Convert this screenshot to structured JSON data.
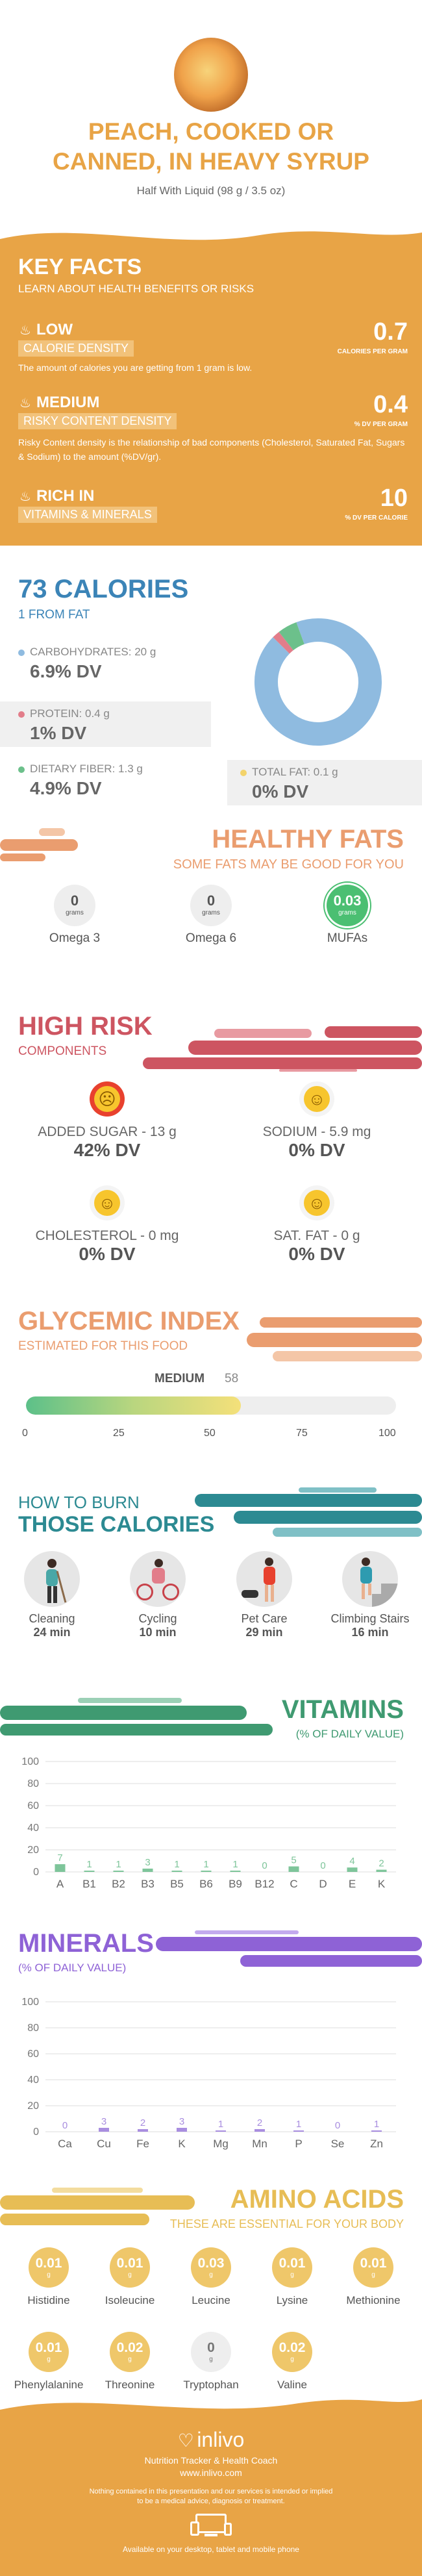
{
  "header": {
    "title_line1": "PEACH, COOKED OR",
    "title_line2": "CANNED, IN HEAVY SYRUP",
    "serving": "Half With Liquid (98 g / 3.5 oz)"
  },
  "key_facts": {
    "title": "KEY FACTS",
    "subtitle": "LEARN ABOUT HEALTH BENEFITS OR RISKS",
    "items": [
      {
        "level": "LOW",
        "label": "CALORIE DENSITY",
        "value": "0.7",
        "unit": "CALORIES PER GRAM",
        "desc": "The amount of calories you are getting from 1 gram is low."
      },
      {
        "level": "MEDIUM",
        "label": "RISKY CONTENT DENSITY",
        "value": "0.4",
        "unit": "% DV PER GRAM",
        "desc": "Risky Content density is the relationship of bad components (Cholesterol, Saturated Fat, Sugars & Sodium) to the amount (%DV/gr)."
      },
      {
        "level": "RICH IN",
        "label": "VITAMINS & MINERALS",
        "value": "10",
        "unit": "% DV PER CALORIE",
        "desc": ""
      }
    ]
  },
  "calories": {
    "title": "73 CALORIES",
    "from_fat": "1 FROM FAT",
    "macros": [
      {
        "label": "CARBOHYDRATES: 20 g",
        "dv": "6.9% DV",
        "color": "#8fbbe0"
      },
      {
        "label": "PROTEIN: 0.4 g",
        "dv": "1% DV",
        "color": "#e27d8a"
      },
      {
        "label": "DIETARY FIBER: 1.3 g",
        "dv": "4.9% DV",
        "color": "#6cc08b"
      },
      {
        "label": "TOTAL FAT: 0.1 g",
        "dv": "0% DV",
        "color": "#f3d36b"
      }
    ],
    "donut": [
      {
        "name": "carbohydrates",
        "value": 93,
        "color": "#8fbbe0"
      },
      {
        "name": "protein",
        "value": 2,
        "color": "#e27d8a"
      },
      {
        "name": "fiber",
        "value": 5,
        "color": "#6cc08b"
      }
    ]
  },
  "healthy_fats": {
    "title": "HEALTHY FATS",
    "subtitle": "SOME FATS MAY BE GOOD FOR YOU",
    "items": [
      {
        "value": "0",
        "unit": "grams",
        "label": "Omega 3"
      },
      {
        "value": "0",
        "unit": "grams",
        "label": "Omega 6"
      },
      {
        "value": "0.03",
        "unit": "grams",
        "label": "MUFAs"
      }
    ]
  },
  "high_risk": {
    "title": "HIGH RISK",
    "subtitle": "COMPONENTS",
    "items": [
      {
        "label": "ADDED SUGAR - 13 g",
        "dv": "42% DV",
        "face": "sad"
      },
      {
        "label": "SODIUM - 5.9 mg",
        "dv": "0% DV",
        "face": "happy"
      },
      {
        "label": "CHOLESTEROL - 0 mg",
        "dv": "0% DV",
        "face": "happy"
      },
      {
        "label": "SAT. FAT - 0 g",
        "dv": "0% DV",
        "face": "happy"
      }
    ]
  },
  "glycemic": {
    "title": "GLYCEMIC INDEX",
    "subtitle": "ESTIMATED FOR THIS FOOD",
    "level": "MEDIUM",
    "value": 58,
    "value_text": "58",
    "ticks": [
      "0",
      "25",
      "50",
      "75",
      "100"
    ]
  },
  "burn": {
    "title_line1": "HOW TO BURN",
    "title_line2": "THOSE CALORIES",
    "items": [
      {
        "label": "Cleaning",
        "time": "24 min"
      },
      {
        "label": "Cycling",
        "time": "10 min"
      },
      {
        "label": "Pet Care",
        "time": "29 min"
      },
      {
        "label": "Climbing Stairs",
        "time": "16 min"
      }
    ]
  },
  "vitamins": {
    "title": "VITAMINS",
    "subtitle": "(% OF DAILY VALUE)",
    "y_ticks": [
      "100",
      "80",
      "60",
      "40",
      "20",
      "0"
    ],
    "chart_data": {
      "type": "bar",
      "categories": [
        "A",
        "B1",
        "B2",
        "B3",
        "B5",
        "B6",
        "B9",
        "B12",
        "C",
        "D",
        "E",
        "K"
      ],
      "values": [
        7,
        1,
        1,
        3,
        1,
        1,
        1,
        0,
        5,
        0,
        4,
        2
      ],
      "ylim": [
        0,
        100
      ]
    }
  },
  "minerals": {
    "title": "MINERALS",
    "subtitle": "(% OF DAILY VALUE)",
    "y_ticks": [
      "100",
      "80",
      "60",
      "40",
      "20",
      "0"
    ],
    "chart_data": {
      "type": "bar",
      "categories": [
        "Ca",
        "Cu",
        "Fe",
        "K",
        "Mg",
        "Mn",
        "P",
        "Se",
        "Zn"
      ],
      "values": [
        0,
        3,
        2,
        3,
        1,
        2,
        1,
        0,
        1
      ],
      "ylim": [
        0,
        100
      ]
    }
  },
  "amino": {
    "title": "AMINO ACIDS",
    "subtitle": "THESE ARE ESSENTIAL FOR YOUR BODY",
    "unit": "g",
    "items": [
      {
        "value": "0.01",
        "label": "Histidine",
        "empty": false
      },
      {
        "value": "0.01",
        "label": "Isoleucine",
        "empty": false
      },
      {
        "value": "0.03",
        "label": "Leucine",
        "empty": false
      },
      {
        "value": "0.01",
        "label": "Lysine",
        "empty": false
      },
      {
        "value": "0.01",
        "label": "Methionine",
        "empty": false
      },
      {
        "value": "0.01",
        "label": "Phenylalanine",
        "empty": false
      },
      {
        "value": "0.02",
        "label": "Threonine",
        "empty": false
      },
      {
        "value": "0",
        "label": "Tryptophan",
        "empty": true
      },
      {
        "value": "0.02",
        "label": "Valine",
        "empty": false
      }
    ]
  },
  "footer": {
    "brand": "inlivo",
    "tagline": "Nutrition Tracker & Health Coach",
    "url": "www.inlivo.com",
    "disclaimer1": "Nothing contained in this presentation and our services is intended or implied",
    "disclaimer2": "to be a medical advice, diagnosis or treatment.",
    "available": "Available on your desktop, tablet and mobile phone"
  },
  "colors": {
    "orange": "#e8a446",
    "salmon": "#ea9d6f",
    "red": "#cd5561",
    "blue": "#3b84b7",
    "teal": "#2c8a92",
    "green": "#3f9a71",
    "purple": "#8e62d6",
    "gold": "#e7bd55"
  }
}
